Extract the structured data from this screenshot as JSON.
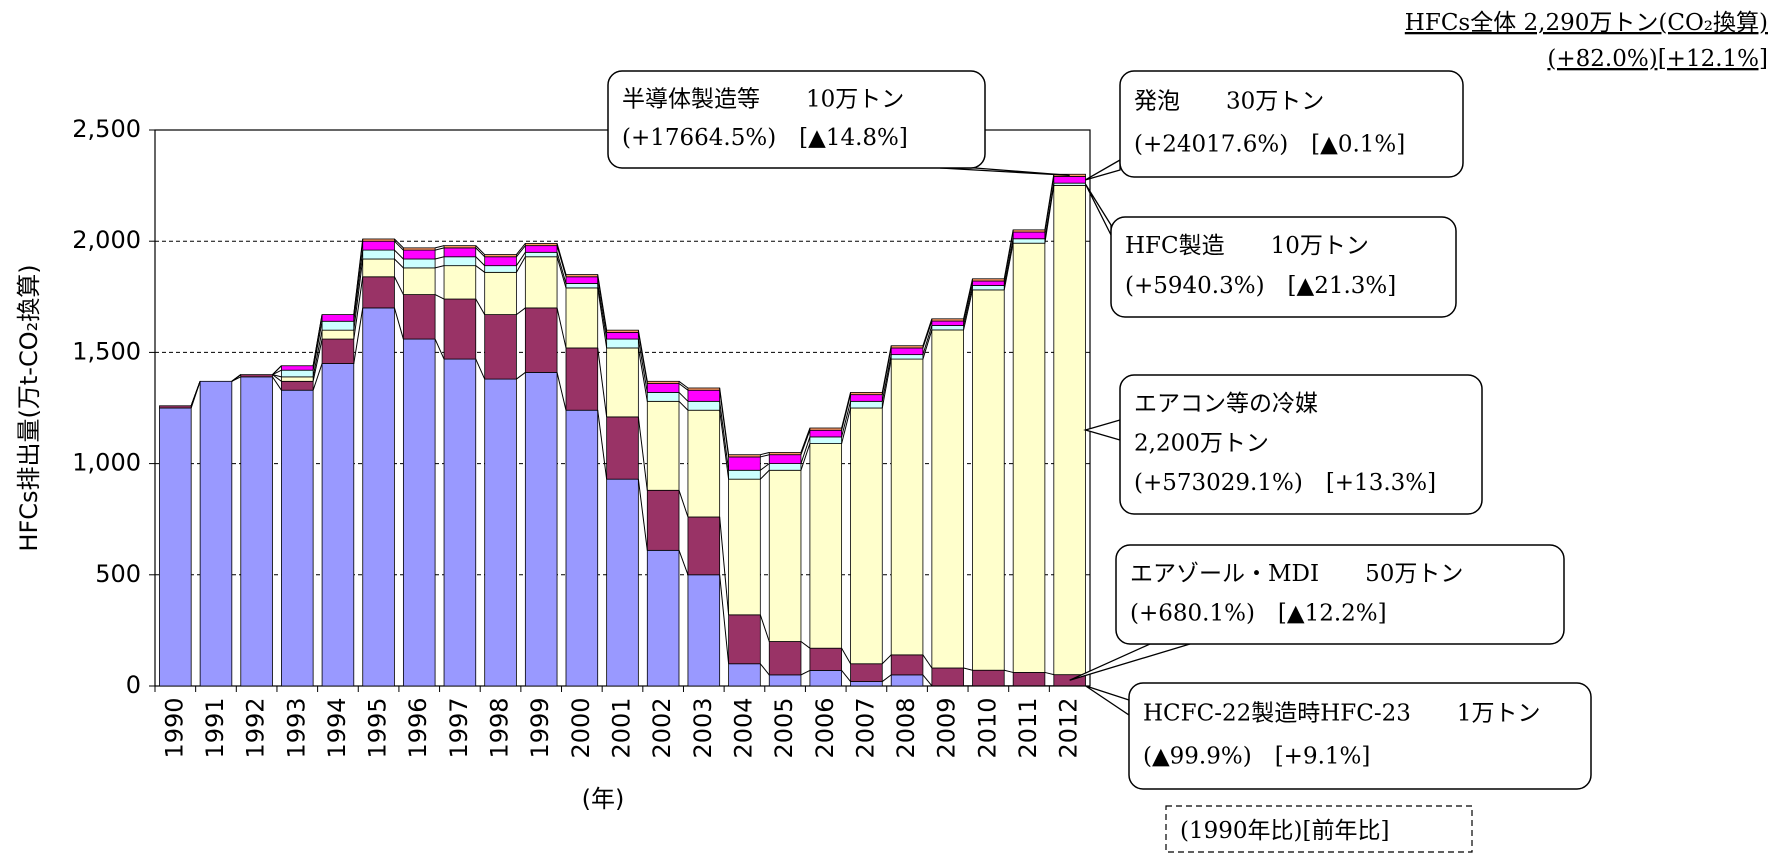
{
  "chart_data": {
    "type": "bar",
    "stacked": true,
    "title": "HFCs全体 2,290万トン(CO₂換算)",
    "subtitle": "(+82.0%)[+12.1%]",
    "y_label": "HFCs排出量(万t-CO₂換算)",
    "x_label": "(年)",
    "categories": [
      "1990",
      "1991",
      "1992",
      "1993",
      "1994",
      "1995",
      "1996",
      "1997",
      "1998",
      "1999",
      "2000",
      "2001",
      "2002",
      "2003",
      "2004",
      "2005",
      "2006",
      "2007",
      "2008",
      "2009",
      "2010",
      "2011",
      "2012"
    ],
    "series": [
      {
        "color": "#9999ff",
        "values": [
          1250,
          1370,
          1390,
          1330,
          1450,
          1700,
          1560,
          1470,
          1380,
          1410,
          1240,
          930,
          610,
          500,
          100,
          50,
          70,
          20,
          50,
          1,
          1,
          1,
          1
        ]
      },
      {
        "color": "#993366",
        "values": [
          10,
          0,
          10,
          40,
          110,
          140,
          200,
          270,
          290,
          290,
          280,
          280,
          270,
          260,
          220,
          150,
          100,
          80,
          90,
          80,
          70,
          60,
          50
        ]
      },
      {
        "color": "#ffffcc",
        "values": [
          0,
          0,
          0,
          20,
          40,
          80,
          120,
          150,
          190,
          230,
          270,
          310,
          400,
          480,
          610,
          770,
          920,
          1150,
          1330,
          1520,
          1710,
          1930,
          2200
        ]
      },
      {
        "color": "#ccffff",
        "values": [
          0,
          0,
          0,
          30,
          40,
          40,
          40,
          40,
          30,
          20,
          20,
          40,
          40,
          40,
          40,
          30,
          30,
          30,
          20,
          20,
          20,
          20,
          10
        ]
      },
      {
        "color": "#ff00ff",
        "values": [
          0,
          0,
          0,
          20,
          30,
          40,
          40,
          40,
          40,
          30,
          30,
          30,
          40,
          50,
          60,
          40,
          30,
          30,
          30,
          20,
          20,
          30,
          30
        ]
      },
      {
        "color": "#ff9966",
        "values": [
          0,
          0,
          0,
          0,
          0,
          10,
          10,
          10,
          10,
          10,
          10,
          10,
          10,
          10,
          10,
          10,
          10,
          10,
          10,
          10,
          10,
          10,
          10
        ]
      }
    ],
    "ylim": [
      0,
      2500
    ],
    "yticks": [
      0,
      500,
      {
        "value": 1000,
        "label": "1,000"
      },
      {
        "value": 1500,
        "label": "1,500"
      },
      {
        "value": 2000,
        "label": "2,000"
      },
      {
        "value": 2500,
        "label": "2,500"
      }
    ],
    "grid": true,
    "annotations": [
      {
        "lines": [
          "半導体製造等　　10万トン",
          "(+17664.5%)　[▲14.8%]"
        ]
      },
      {
        "lines": [
          "発泡　　30万トン",
          "(+24017.6%)　[▲0.1%]"
        ]
      },
      {
        "lines": [
          "HFC製造　　10万トン",
          "(+5940.3%)　[▲21.3%]"
        ]
      },
      {
        "lines": [
          "エアコン等の冷媒",
          "2,200万トン",
          "(+573029.1%)　[+13.3%]"
        ]
      },
      {
        "lines": [
          "エアゾール・MDI　　50万トン",
          "(+680.1%)　[▲12.2%]"
        ]
      },
      {
        "lines": [
          "HCFC-22製造時HFC-23　　1万トン",
          "(▲99.9%)　[+9.1%]"
        ]
      },
      {
        "lines": [
          "(1990年比)[前年比]"
        ]
      }
    ]
  }
}
